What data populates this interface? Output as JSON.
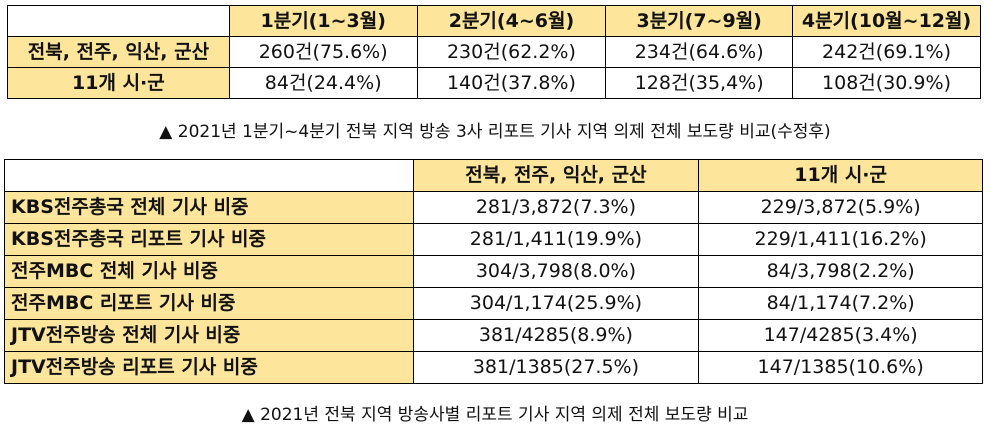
{
  "table1": {
    "headers": [
      "",
      "1분기(1~3월)",
      "2분기(4~6월)",
      "3분기(7~9월)",
      "4분기(10월~12월)"
    ],
    "rows": [
      {
        "label": "전북, 전주, 익산, 군산",
        "cells": [
          "260건(75.6%)",
          "230건(62.2%)",
          "234건(64.6%)",
          "242건(69.1%)"
        ]
      },
      {
        "label": "11개 시·군",
        "cells": [
          "84건(24.4%)",
          "140건(37.8%)",
          "128건(35,4%)",
          "108건(30.9%)"
        ]
      }
    ]
  },
  "caption1": "▲ 2021년 1분기~4분기 전북 지역 방송 3사 리포트 기사 지역 의제 전체 보도량 비교(수정후)",
  "table2": {
    "headers": [
      "",
      "전북, 전주, 익산, 군산",
      "11개 시·군"
    ],
    "rows": [
      {
        "label": "KBS전주총국 전체 기사 비중",
        "cells": [
          "281/3,872(7.3%)",
          "229/3,872(5.9%)"
        ]
      },
      {
        "label": "KBS전주총국 리포트 기사 비중",
        "cells": [
          "281/1,411(19.9%)",
          "229/1,411(16.2%)"
        ]
      },
      {
        "label": "전주MBC 전체 기사 비중",
        "cells": [
          "304/3,798(8.0%)",
          "84/3,798(2.2%)"
        ]
      },
      {
        "label": "전주MBC 리포트 기사 비중",
        "cells": [
          "304/1,174(25.9%)",
          "84/1,174(7.2%)"
        ]
      },
      {
        "label": "JTV전주방송 전체 기사 비중",
        "cells": [
          "381/4285(8.9%)",
          "147/4285(3.4%)"
        ]
      },
      {
        "label": "JTV전주방송 리포트 기사 비중",
        "cells": [
          "381/1385(27.5%)",
          "147/1385(10.6%)"
        ]
      }
    ]
  },
  "caption2": "▲ 2021년 전북 지역 방송사별 리포트 기사 지역 의제 전체 보도량 비교"
}
